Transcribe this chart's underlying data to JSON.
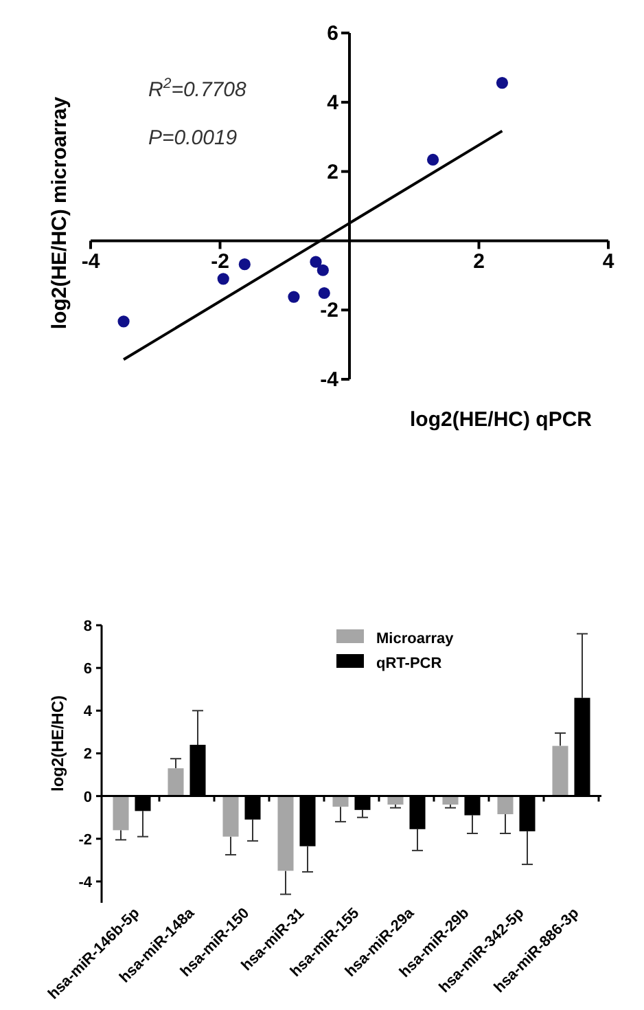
{
  "chart_data": [
    {
      "type": "scatter",
      "xlabel": "log2(HE/HC) qPCR",
      "ylabel": "log2(HE/HC) microarray",
      "annotations": [
        "R$^{2}$=0.7708",
        "P=0.0019"
      ],
      "xlim": [
        -4,
        4
      ],
      "ylim": [
        -4,
        6
      ],
      "xticks": [
        -4,
        -2,
        2,
        4
      ],
      "yticks": [
        -4,
        -2,
        2,
        4,
        6
      ],
      "series": [
        {
          "type": "scatter",
          "color": "#10108a",
          "marker": "circle",
          "x": [
            2.36,
            1.29,
            -1.62,
            -1.95,
            -3.49,
            -0.86,
            -0.52,
            -0.41,
            -0.39
          ],
          "values": [
            4.56,
            2.34,
            -0.68,
            -1.1,
            -2.33,
            -1.62,
            -0.61,
            -0.85,
            -1.51
          ]
        },
        {
          "type": "line",
          "color": "#000000",
          "x": [
            -3.49,
            2.36
          ],
          "values": [
            -3.43,
            3.17
          ],
          "marker": "none",
          "line_style": "solid"
        }
      ]
    },
    {
      "type": "bar",
      "ylabel": "log2(HE/HC)",
      "categories": [
        "hsa-miR-146b-5p",
        "hsa-miR-148a",
        "hsa-miR-150",
        "hsa-miR-31",
        "hsa-miR-155",
        "hsa-miR-29a",
        "hsa-miR-29b",
        "hsa-miR-342-5p",
        "hsa-miR-886-3p"
      ],
      "ylim": [
        -5,
        8
      ],
      "yticks": [
        -4,
        -2,
        0,
        2,
        4,
        6,
        8
      ],
      "legend": "top",
      "series": [
        {
          "name": "Microarray",
          "color": "#a6a6a6",
          "values": [
            -1.6,
            1.3,
            -1.9,
            -3.5,
            -0.5,
            -0.4,
            -0.4,
            -0.85,
            2.35
          ],
          "errors": [
            0.45,
            0.45,
            0.85,
            1.1,
            0.7,
            0.15,
            0.15,
            0.9,
            0.6
          ]
        },
        {
          "name": "qRT-PCR",
          "color": "#000000",
          "values": [
            -0.7,
            2.4,
            -1.1,
            -2.35,
            -0.65,
            -1.55,
            -0.9,
            -1.65,
            4.6
          ],
          "errors": [
            1.2,
            1.6,
            1.0,
            1.2,
            0.35,
            1.0,
            0.85,
            1.55,
            3.0
          ]
        }
      ]
    }
  ]
}
